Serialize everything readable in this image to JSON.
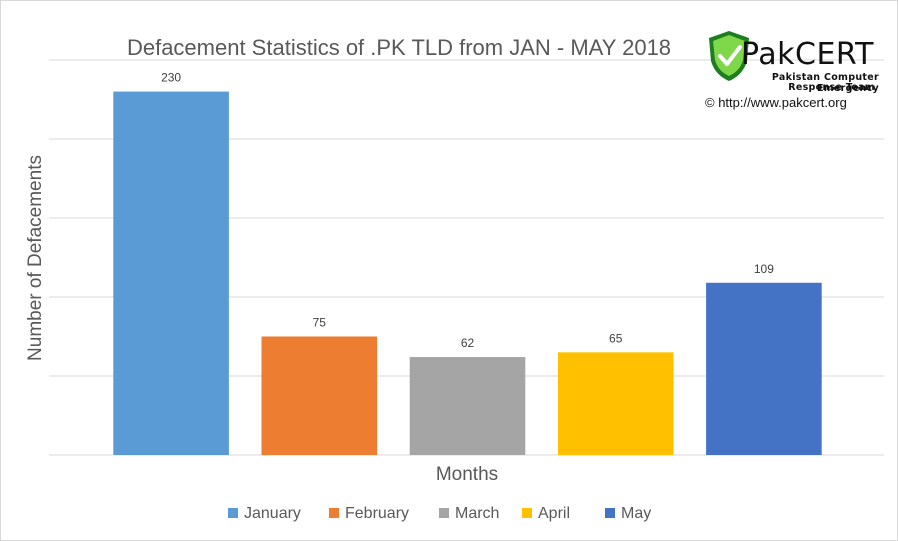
{
  "chart_data": {
    "type": "bar",
    "title": "Defacement Statistics of .PK TLD from JAN - MAY 2018",
    "xlabel": "Months",
    "ylabel": "Number of Defacements",
    "categories": [
      "January",
      "February",
      "March",
      "April",
      "May"
    ],
    "values": [
      230,
      75,
      62,
      65,
      109
    ],
    "colors": [
      "#5b9bd5",
      "#ed7d31",
      "#a5a5a5",
      "#ffc000",
      "#4472c4"
    ],
    "ylim": [
      0,
      250
    ],
    "y_gridlines": [
      0,
      50,
      100,
      150,
      200,
      250
    ],
    "y_tick_labels_shown": false,
    "data_labels": true,
    "grid": true,
    "legend_position": "bottom"
  },
  "logo": {
    "wordmark": "PakCERT",
    "subtitle_line1": "Pakistan Computer Emergency",
    "subtitle_line2": "Response Team",
    "url": "© http://www.pakcert.org",
    "colors": {
      "shield_dark": "#1e7d1e",
      "shield_light": "#7fd84a"
    }
  }
}
